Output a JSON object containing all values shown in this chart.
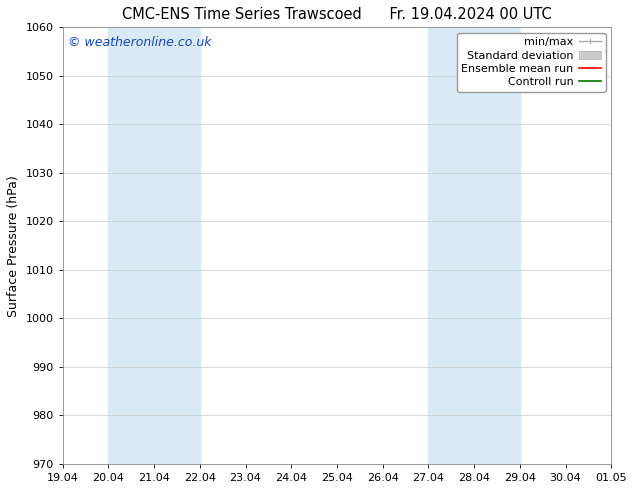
{
  "title_left": "CMC-ENS Time Series Trawscoed",
  "title_right": "Fr. 19.04.2024 00 UTC",
  "ylabel": "Surface Pressure (hPa)",
  "ylim": [
    970,
    1060
  ],
  "yticks": [
    970,
    980,
    990,
    1000,
    1010,
    1020,
    1030,
    1040,
    1050,
    1060
  ],
  "xlabels": [
    "19.04",
    "20.04",
    "21.04",
    "22.04",
    "23.04",
    "24.04",
    "25.04",
    "26.04",
    "27.04",
    "28.04",
    "29.04",
    "30.04",
    "01.05"
  ],
  "x_positions": [
    0,
    1,
    2,
    3,
    4,
    5,
    6,
    7,
    8,
    9,
    10,
    11,
    12
  ],
  "shade_bands": [
    {
      "xmin": 1,
      "xmax": 3,
      "color": "#daeaf5"
    },
    {
      "xmin": 8,
      "xmax": 10,
      "color": "#daeaf5"
    }
  ],
  "legend_items": [
    {
      "label": "min/max",
      "type": "line",
      "color": "#aaaaaa",
      "lw": 1.0
    },
    {
      "label": "Standard deviation",
      "type": "patch",
      "facecolor": "#cccccc",
      "edgecolor": "#aaaaaa"
    },
    {
      "label": "Ensemble mean run",
      "type": "line",
      "color": "#ff0000",
      "lw": 1.2
    },
    {
      "label": "Controll run",
      "type": "line",
      "color": "#007700",
      "lw": 1.2
    }
  ],
  "watermark": "© weatheronline.co.uk",
  "watermark_color": "#1144cc",
  "bg_color": "#ffffff",
  "plot_bg_color": "#ffffff",
  "grid_color": "#cccccc",
  "title_fontsize": 10.5,
  "tick_fontsize": 8,
  "ylabel_fontsize": 9,
  "legend_fontsize": 8,
  "watermark_fontsize": 9
}
